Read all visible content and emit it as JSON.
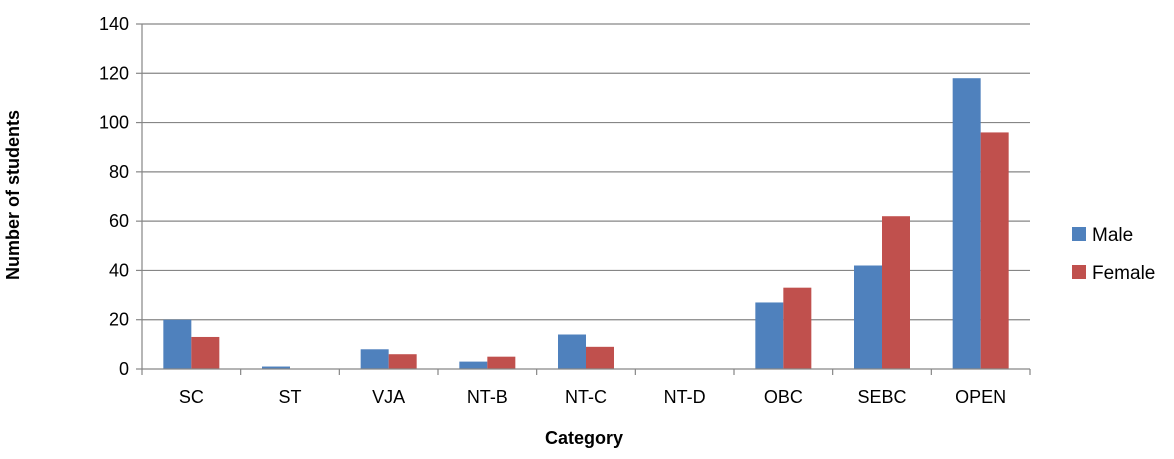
{
  "chart_data": {
    "type": "bar",
    "title": "",
    "xlabel": "Category",
    "ylabel": "Number of students",
    "ylim": [
      0,
      140
    ],
    "yticks": [
      0,
      20,
      40,
      60,
      80,
      100,
      120,
      140
    ],
    "grid": true,
    "legend_position": "right",
    "categories": [
      "SC",
      "ST",
      "VJA",
      "NT-B",
      "NT-C",
      "NT-D",
      "OBC",
      "SEBC",
      "OPEN"
    ],
    "series": [
      {
        "name": "Male",
        "color": "#4F81BD",
        "values": [
          20,
          1,
          8,
          3,
          14,
          0,
          27,
          42,
          118
        ]
      },
      {
        "name": "Female",
        "color": "#C0504D",
        "values": [
          13,
          0,
          6,
          5,
          9,
          0,
          33,
          62,
          96
        ]
      }
    ]
  }
}
